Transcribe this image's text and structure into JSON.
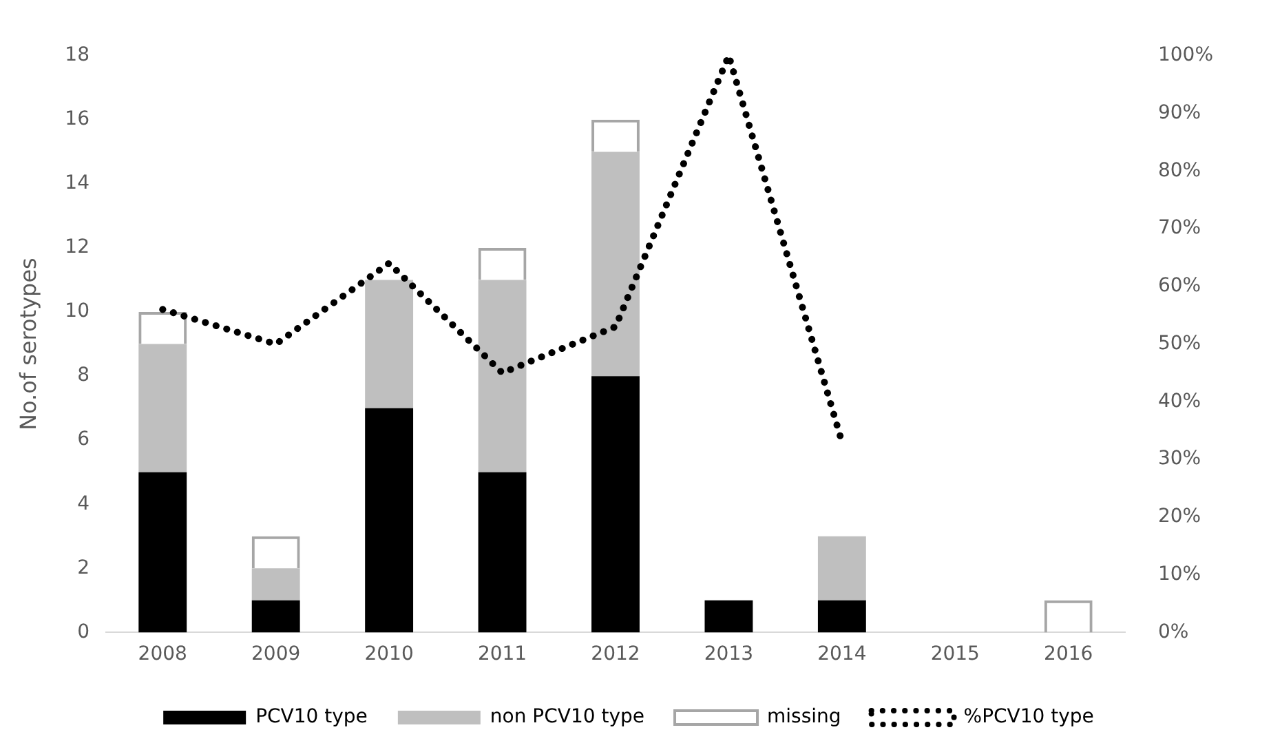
{
  "chart_data": {
    "type": "bar",
    "stacked": true,
    "ylabel": "No.of serotypes",
    "categories": [
      "2008",
      "2009",
      "2010",
      "2011",
      "2012",
      "2013",
      "2014",
      "2015",
      "2016"
    ],
    "series": [
      {
        "name": "PCV10 type",
        "color": "#000000",
        "values": [
          5,
          1,
          7,
          5,
          8,
          1,
          1,
          0,
          0
        ]
      },
      {
        "name": "non PCV10 type",
        "color": "#bfbfbf",
        "values": [
          4,
          1,
          4,
          6,
          7,
          0,
          2,
          0,
          0
        ]
      },
      {
        "name": "missing",
        "color": "#a6a6a6",
        "values": [
          1,
          1,
          0,
          1,
          1,
          0,
          0,
          0,
          1
        ]
      },
      {
        "name": "%PCV10 type",
        "type": "line",
        "axis": "y2",
        "color": "#000000",
        "line_style": "dotted",
        "marker": "none",
        "values": [
          56,
          50,
          64,
          45,
          53,
          100,
          33,
          null,
          null
        ]
      }
    ],
    "ylim": [
      0,
      18
    ],
    "yticks": [
      0,
      2,
      4,
      6,
      8,
      10,
      12,
      14,
      16,
      18
    ],
    "y2lim": [
      0,
      100
    ],
    "y2ticks": [
      {
        "value": 0,
        "label": "0%"
      },
      {
        "value": 10,
        "label": "10%"
      },
      {
        "value": 20,
        "label": "20%"
      },
      {
        "value": 30,
        "label": "30%"
      },
      {
        "value": 40,
        "label": "40%"
      },
      {
        "value": 50,
        "label": "50%"
      },
      {
        "value": 60,
        "label": "60%"
      },
      {
        "value": 70,
        "label": "70%"
      },
      {
        "value": 80,
        "label": "80%"
      },
      {
        "value": 90,
        "label": "90%"
      },
      {
        "value": 100,
        "label": "100%"
      }
    ],
    "grid": false,
    "legend": "bottom"
  }
}
